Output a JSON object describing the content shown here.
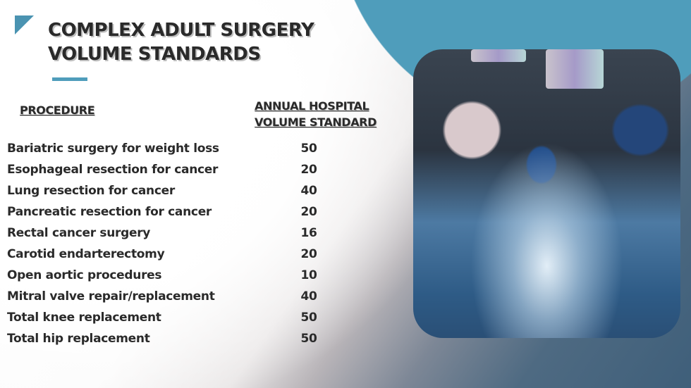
{
  "title": {
    "line1": "COMPLEX ADULT SURGERY",
    "line2": "VOLUME STANDARDS"
  },
  "table": {
    "headers": {
      "procedure": "PROCEDURE",
      "volume_line1": "ANNUAL HOSPITAL",
      "volume_line2": "VOLUME STANDARD"
    },
    "rows": [
      {
        "procedure": "Bariatric surgery for weight loss",
        "volume": "50"
      },
      {
        "procedure": "Esophageal resection for cancer",
        "volume": "20"
      },
      {
        "procedure": "Lung resection for cancer",
        "volume": "40"
      },
      {
        "procedure": "Pancreatic resection for cancer",
        "volume": "20"
      },
      {
        "procedure": "Rectal cancer surgery",
        "volume": "16"
      },
      {
        "procedure": "Carotid endarterectomy",
        "volume": "20"
      },
      {
        "procedure": "Open aortic procedures",
        "volume": "10"
      },
      {
        "procedure": "Mitral valve repair/replacement",
        "volume": "40"
      },
      {
        "procedure": "Total knee replacement",
        "volume": "50"
      },
      {
        "procedure": "Total hip replacement",
        "volume": "50"
      }
    ]
  },
  "colors": {
    "accent": "#4f9dbb",
    "text": "#2a2a2a"
  },
  "image": {
    "subject": "surgeons-operating-photo"
  }
}
